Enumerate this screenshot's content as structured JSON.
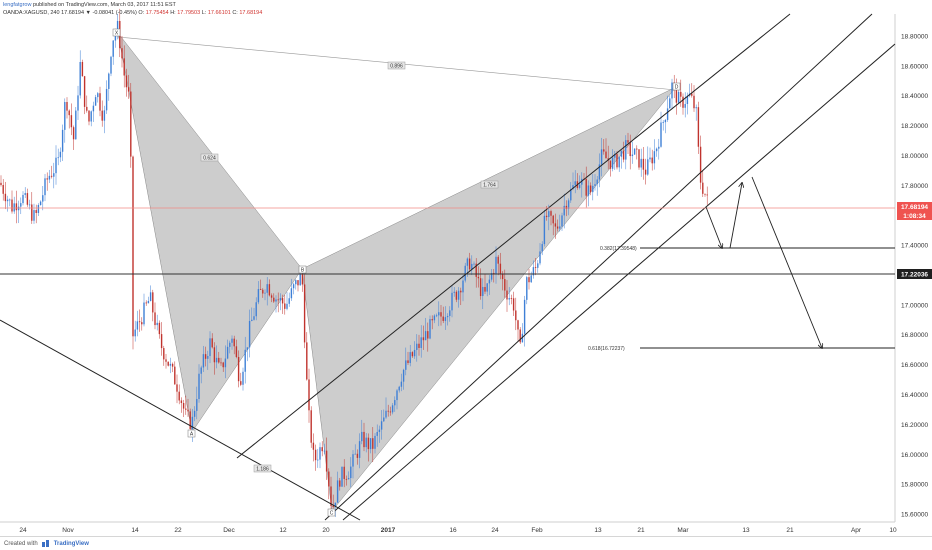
{
  "header": {
    "line1_author": "lengfatgrow",
    "line1_rest": " published on TradingView.com, March 03, 2017 11:51 EST",
    "line2_prefix": "OANDA:XAGUSD, 240  17.68194  ▼ -0.08041 (-0.45%)  O: ",
    "line2_open": "17.75454",
    "line2_h_label": "  H: ",
    "line2_high": "17.79503",
    "line2_l_label": "  L: ",
    "line2_low": "17.66101",
    "line2_c_label": "  C: ",
    "line2_close": "17.68194"
  },
  "footer": {
    "prefix": "Created with",
    "brand": "TradingView"
  },
  "colors": {
    "up": "#3e7fd6",
    "down": "#c0332d",
    "pattern_fill": "#b8b8b8",
    "price_tag": "#ef5350",
    "dark_tag": "#1f1f1f"
  },
  "chart_data": {
    "type": "candlestick",
    "symbol": "OANDA:XAGUSD, 240",
    "x_ticks": [
      "24",
      "Nov",
      "14",
      "22",
      "Dec",
      "12",
      "20",
      "2017",
      "16",
      "24",
      "Feb",
      "13",
      "21",
      "Mar",
      "13",
      "21",
      "Apr",
      "10"
    ],
    "y_ticks": [
      "18.80000",
      "18.60000",
      "18.40000",
      "18.20000",
      "18.00000",
      "17.80000",
      "17.60000",
      "17.40000",
      "17.20000",
      "17.00000",
      "16.80000",
      "16.60000",
      "16.40000",
      "16.20000",
      "16.00000",
      "15.80000",
      "15.60000"
    ],
    "y_range": [
      15.55,
      18.95
    ],
    "grid": false,
    "current_price": {
      "label": "17.68194",
      "countdown": "1:08:34"
    },
    "horizontal_line_label": "17.22036",
    "pattern_points": [
      {
        "label": "X",
        "price": 18.86
      },
      {
        "label": "A",
        "price": 16.21
      },
      {
        "label": "B",
        "price": 17.2
      },
      {
        "label": "C",
        "price": 15.63
      },
      {
        "label": "D",
        "price": 18.47
      }
    ],
    "ratio_labels": [
      "0.896",
      "0.624",
      "1.764",
      "1.186"
    ],
    "fib_levels": [
      {
        "label": "0.382(17.39548)",
        "price": 17.39548
      },
      {
        "label": "0.618(16.72237)",
        "price": 16.72237
      }
    ],
    "candle_path": [
      [
        0,
        17.82
      ],
      [
        12,
        17.66
      ],
      [
        22,
        17.73
      ],
      [
        35,
        17.58
      ],
      [
        48,
        17.86
      ],
      [
        58,
        17.95
      ],
      [
        66,
        18.4
      ],
      [
        74,
        18.1
      ],
      [
        80,
        18.62
      ],
      [
        88,
        18.2
      ],
      [
        96,
        18.45
      ],
      [
        104,
        18.25
      ],
      [
        112,
        18.78
      ],
      [
        118,
        18.86
      ],
      [
        124,
        18.55
      ],
      [
        130,
        18.35
      ],
      [
        133,
        16.8
      ],
      [
        140,
        16.9
      ],
      [
        150,
        17.05
      ],
      [
        160,
        16.75
      ],
      [
        168,
        16.62
      ],
      [
        178,
        16.45
      ],
      [
        186,
        16.25
      ],
      [
        192,
        16.21
      ],
      [
        200,
        16.55
      ],
      [
        210,
        16.75
      ],
      [
        220,
        16.55
      ],
      [
        232,
        16.8
      ],
      [
        240,
        16.5
      ],
      [
        250,
        16.85
      ],
      [
        258,
        17.05
      ],
      [
        266,
        17.15
      ],
      [
        276,
        17.05
      ],
      [
        286,
        17.0
      ],
      [
        294,
        17.12
      ],
      [
        302,
        17.2
      ],
      [
        308,
        16.3
      ],
      [
        314,
        15.95
      ],
      [
        324,
        16.1
      ],
      [
        332,
        15.63
      ],
      [
        340,
        15.85
      ],
      [
        350,
        15.9
      ],
      [
        362,
        16.1
      ],
      [
        372,
        16.05
      ],
      [
        382,
        16.2
      ],
      [
        392,
        16.35
      ],
      [
        402,
        16.55
      ],
      [
        416,
        16.7
      ],
      [
        430,
        16.85
      ],
      [
        444,
        16.95
      ],
      [
        458,
        17.1
      ],
      [
        470,
        17.3
      ],
      [
        484,
        17.05
      ],
      [
        496,
        17.3
      ],
      [
        506,
        17.1
      ],
      [
        514,
        17.0
      ],
      [
        520,
        16.68
      ],
      [
        526,
        17.15
      ],
      [
        536,
        17.25
      ],
      [
        546,
        17.6
      ],
      [
        556,
        17.5
      ],
      [
        566,
        17.7
      ],
      [
        578,
        17.85
      ],
      [
        590,
        17.75
      ],
      [
        602,
        18.0
      ],
      [
        614,
        17.95
      ],
      [
        626,
        18.05
      ],
      [
        636,
        18.0
      ],
      [
        646,
        17.9
      ],
      [
        656,
        18.05
      ],
      [
        664,
        18.25
      ],
      [
        672,
        18.47
      ],
      [
        680,
        18.35
      ],
      [
        690,
        18.4
      ],
      [
        696,
        18.3
      ],
      [
        700,
        17.85
      ],
      [
        708,
        17.68
      ]
    ]
  }
}
